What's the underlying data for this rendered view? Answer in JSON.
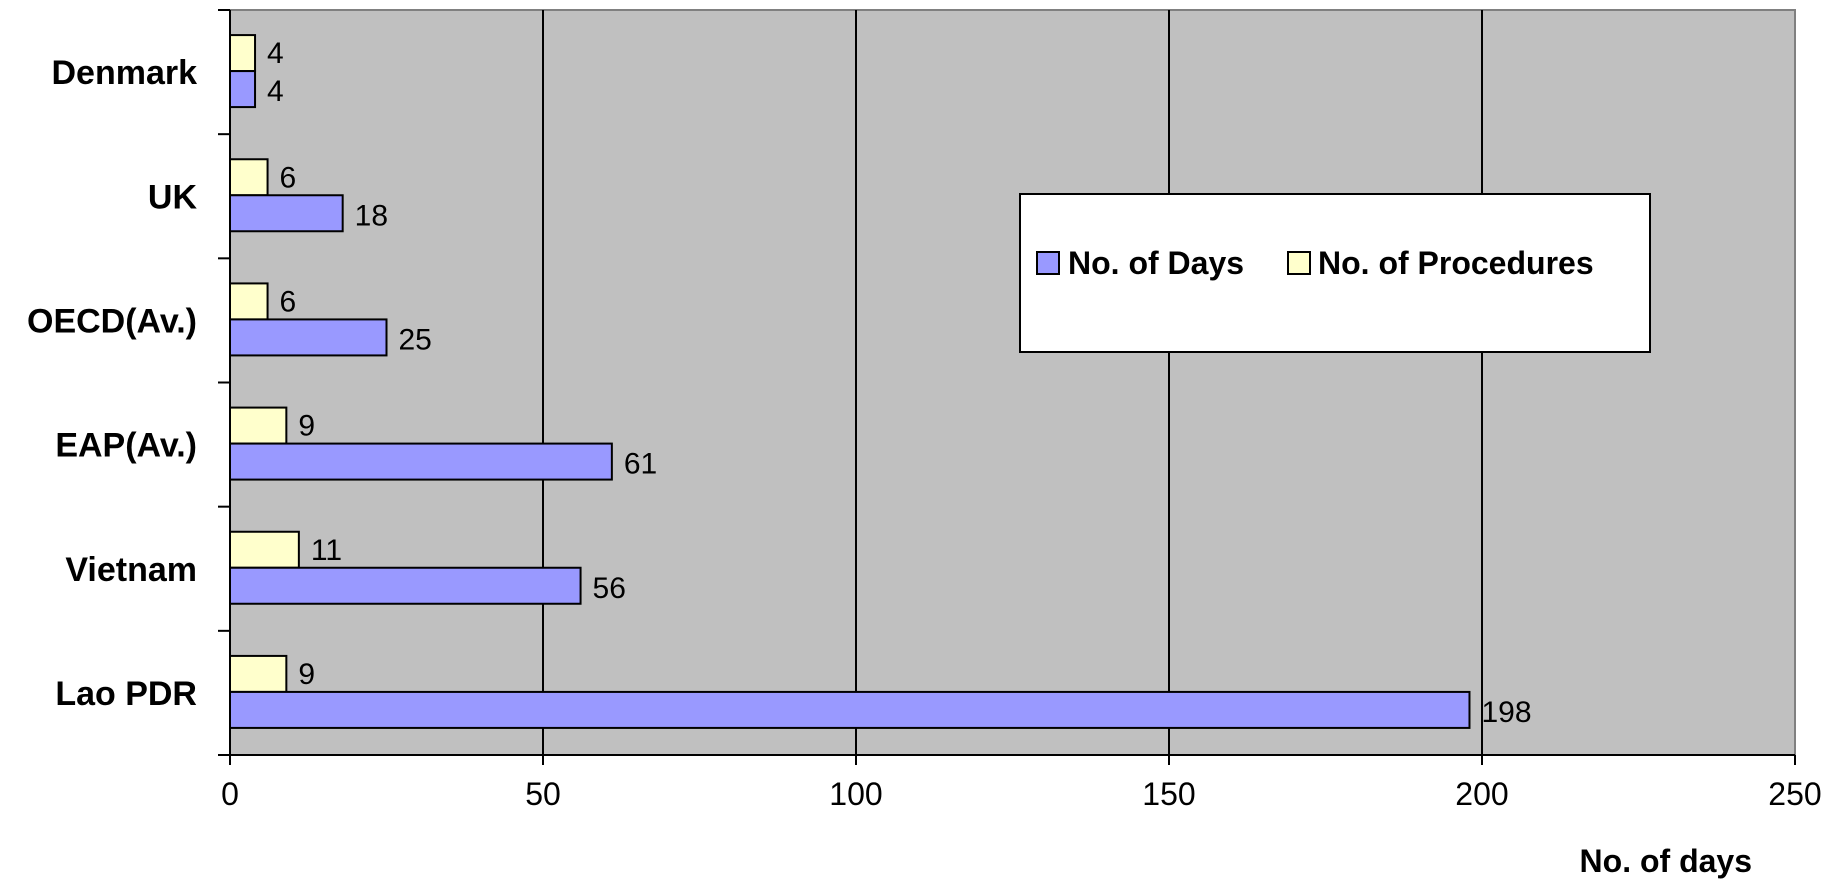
{
  "chart_data": {
    "type": "bar",
    "orientation": "horizontal",
    "categories": [
      "Denmark",
      "UK",
      "OECD(Av.)",
      "EAP(Av.)",
      "Vietnam",
      "Lao PDR"
    ],
    "series": [
      {
        "name": "No. of Days",
        "values": [
          4,
          18,
          25,
          61,
          56,
          198
        ],
        "color": "#9999ff"
      },
      {
        "name": "No. of Procedures",
        "values": [
          4,
          6,
          6,
          9,
          11,
          9
        ],
        "color": "#ffffcc"
      }
    ],
    "xlabel": "No. of days",
    "xlim": [
      0,
      250
    ],
    "xticks": [
      0,
      50,
      100,
      150,
      200,
      250
    ],
    "grid": "vertical",
    "legend_position": "center-right",
    "plot_background": "#c0c0c0"
  }
}
